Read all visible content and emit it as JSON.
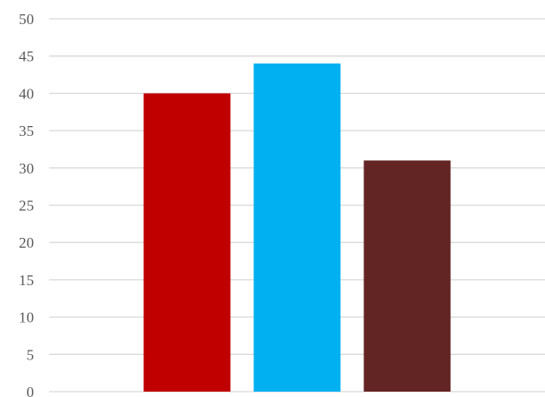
{
  "chart_data": {
    "type": "bar",
    "title": "",
    "xlabel": "",
    "ylabel": "",
    "categories": [
      "",
      "",
      ""
    ],
    "values": [
      40,
      44,
      31
    ],
    "colors": [
      "#c00000",
      "#00b0f0",
      "#632523"
    ],
    "ylim": [
      0,
      50
    ],
    "yticks": [
      0,
      5,
      10,
      15,
      20,
      25,
      30,
      35,
      40,
      45,
      50
    ],
    "grid": true,
    "legend": "none"
  }
}
